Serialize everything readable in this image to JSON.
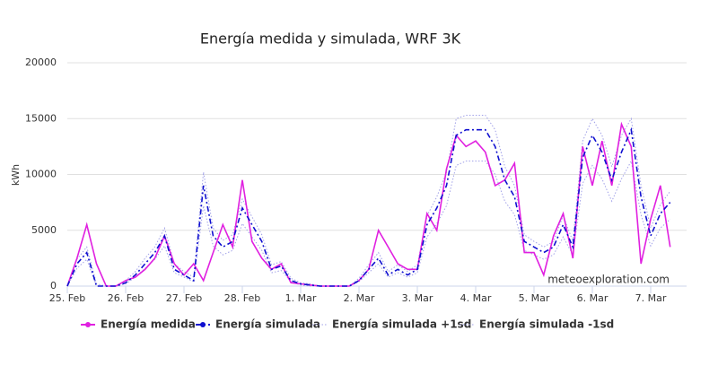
{
  "chart_data": {
    "type": "line",
    "title": "Energía medida y simulada, WRF 3K",
    "y_label": "kWh",
    "credits": "meteoexploration.com",
    "categories": [
      "25. Feb",
      null,
      null,
      null,
      null,
      null,
      "26. Feb",
      null,
      null,
      null,
      null,
      null,
      "27. Feb",
      null,
      null,
      null,
      null,
      null,
      "28. Feb",
      null,
      null,
      null,
      null,
      null,
      "1. Mar",
      null,
      null,
      null,
      null,
      null,
      "2. Mar",
      null,
      null,
      null,
      null,
      null,
      "3. Mar",
      null,
      null,
      null,
      null,
      null,
      "4. Mar",
      null,
      null,
      null,
      null,
      null,
      "5. Mar",
      null,
      null,
      null,
      null,
      null,
      "6. Mar",
      null,
      null,
      null,
      null,
      null,
      "7. Mar",
      null,
      null
    ],
    "ylim": [
      0,
      20000
    ],
    "yticks": [
      0,
      5000,
      10000,
      15000,
      20000
    ],
    "grid": true,
    "legend": "bottom",
    "series": [
      {
        "name": "Energía medida",
        "color": "#e020e0",
        "dash": "solid",
        "values": [
          0,
          2500,
          5500,
          2000,
          0,
          0,
          500,
          800,
          1500,
          2500,
          4500,
          2000,
          1000,
          2000,
          500,
          3000,
          5500,
          3500,
          9500,
          4000,
          2500,
          1500,
          2000,
          300,
          200,
          100,
          0,
          0,
          0,
          0,
          500,
          1500,
          5000,
          3500,
          2000,
          1500,
          1500,
          6500,
          5000,
          10500,
          13500,
          12500,
          13000,
          12000,
          9000,
          9500,
          11000,
          3000,
          3000,
          1000,
          4500,
          6500,
          2500,
          12500,
          9000,
          13000,
          9000,
          14500,
          12500,
          2000,
          6000,
          9000,
          3500
        ]
      },
      {
        "name": "Energía simulada",
        "color": "#1010d0",
        "dash": "dashdot",
        "values": [
          0,
          2000,
          3000,
          0,
          0,
          0,
          300,
          1000,
          2000,
          3000,
          4500,
          1500,
          1000,
          500,
          9000,
          4500,
          3500,
          4000,
          7000,
          5500,
          4000,
          1500,
          1800,
          500,
          200,
          100,
          0,
          0,
          0,
          0,
          500,
          1500,
          2500,
          1000,
          1500,
          1000,
          1500,
          5500,
          7000,
          9000,
          13500,
          14000,
          14000,
          14000,
          12500,
          9500,
          8000,
          4000,
          3500,
          3000,
          3500,
          5500,
          3500,
          11500,
          13500,
          12000,
          9500,
          12000,
          14000,
          8000,
          4500,
          6500,
          7500
        ]
      },
      {
        "name": "Energía simulada +1sd",
        "color": "#a0a0e8",
        "dash": "dot",
        "values": [
          0,
          2400,
          3500,
          200,
          0,
          0,
          500,
          1300,
          2500,
          3500,
          5200,
          2000,
          1300,
          800,
          10200,
          5200,
          4100,
          4600,
          7800,
          6200,
          4600,
          1900,
          2200,
          700,
          300,
          200,
          0,
          0,
          0,
          0,
          700,
          1900,
          3000,
          1300,
          1900,
          1300,
          1900,
          6300,
          8000,
          10200,
          15000,
          15300,
          15300,
          15300,
          14000,
          10700,
          9000,
          4600,
          4000,
          3500,
          4000,
          6300,
          4000,
          13000,
          15000,
          13500,
          10700,
          13500,
          15000,
          9000,
          5200,
          7300,
          8500
        ]
      },
      {
        "name": "Energía simulada -1sd",
        "color": "#a0a0e8",
        "dash": "dot",
        "values": [
          0,
          1600,
          2400,
          0,
          0,
          0,
          200,
          800,
          1600,
          2400,
          3600,
          1200,
          800,
          400,
          7200,
          3600,
          2800,
          3200,
          5600,
          4400,
          3200,
          1200,
          1400,
          400,
          100,
          0,
          0,
          0,
          0,
          0,
          400,
          1200,
          2000,
          800,
          1200,
          800,
          1200,
          4400,
          5600,
          7200,
          10800,
          11200,
          11200,
          11200,
          10000,
          7600,
          6400,
          3200,
          2800,
          2400,
          2800,
          4400,
          2800,
          9200,
          10800,
          9600,
          7600,
          9600,
          11200,
          6400,
          3600,
          5200,
          6000
        ]
      }
    ]
  }
}
